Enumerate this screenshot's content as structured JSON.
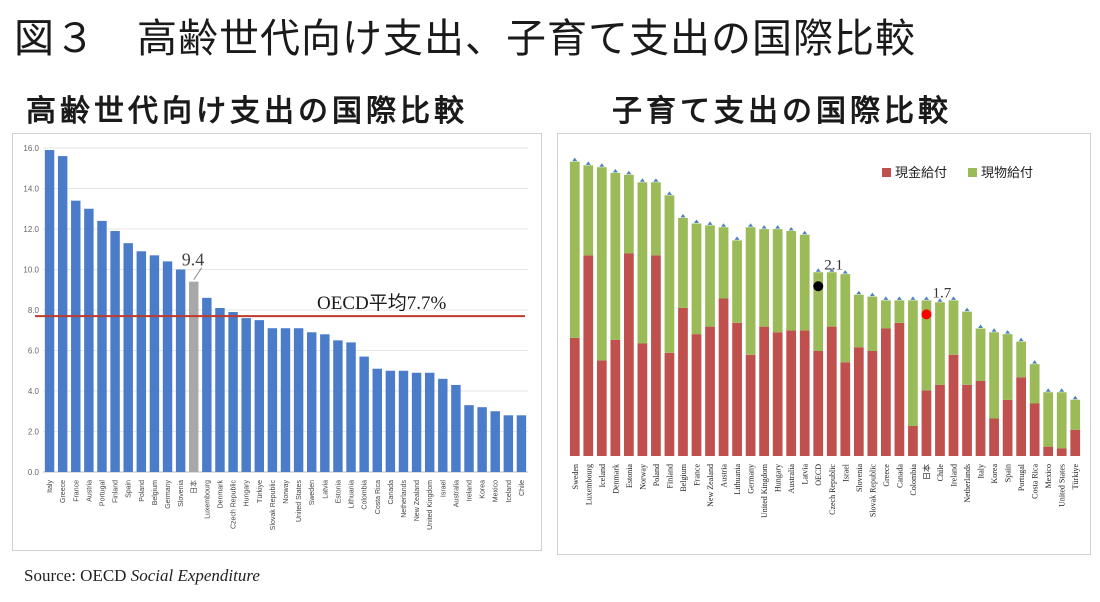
{
  "title": "図３　高齢世代向け支出、子育て支出の国際比較",
  "source": {
    "prefix": "Source: OECD ",
    "italic": "Social Expenditure"
  },
  "chart_data": [
    {
      "type": "bar",
      "title": "高齢世代向け支出の国際比較",
      "categories": [
        "Italy",
        "Greece",
        "France",
        "Austria",
        "Portugal",
        "Finland",
        "Spain",
        "Poland",
        "Belgium",
        "Germany",
        "Slovenia",
        "日本",
        "Luxembourg",
        "Denmark",
        "Czech Republic",
        "Hungary",
        "Türkiye",
        "Slovak Republic",
        "Norway",
        "United States",
        "Sweden",
        "Latvia",
        "Estonia",
        "Lithuania",
        "Colombia",
        "Costa Rica",
        "Canada",
        "Netherlands",
        "New Zealand",
        "United Kingdom",
        "Israel",
        "Australia",
        "Ireland",
        "Korea",
        "Mexico",
        "Iceland",
        "Chile"
      ],
      "values": [
        15.9,
        15.6,
        13.4,
        13.0,
        12.4,
        11.9,
        11.3,
        10.9,
        10.7,
        10.4,
        10.0,
        9.4,
        8.6,
        8.1,
        7.9,
        7.6,
        7.5,
        7.1,
        7.1,
        7.1,
        6.9,
        6.8,
        6.5,
        6.4,
        5.7,
        5.1,
        5.0,
        5.0,
        4.9,
        4.9,
        4.6,
        4.3,
        3.3,
        3.2,
        3.0,
        2.8,
        2.8
      ],
      "highlight": "日本",
      "highlight_label": "9.4",
      "reference_line": {
        "value": 7.7,
        "label": "OECD平均7.7%",
        "color": "#c0392b"
      },
      "yticks": [
        "0.0",
        "2.0",
        "4.0",
        "6.0",
        "8.0",
        "10.0",
        "12.0",
        "14.0",
        "16.0"
      ],
      "ylim": [
        0,
        16
      ],
      "bar_color": "#4a7cc9",
      "highlight_color": "#a8a8a8",
      "grid": true
    },
    {
      "type": "bar",
      "stacked": true,
      "title": "子育て支出の国際比較",
      "categories": [
        "Sweden",
        "Luxembourg",
        "Iceland",
        "Denmark",
        "Estonia",
        "Norway",
        "Poland",
        "Finland",
        "Belgium",
        "France",
        "New Zealand",
        "Austria",
        "Lithuania",
        "Germany",
        "United Kingdom",
        "Hungary",
        "Australia",
        "Latvia",
        "OECD",
        "Czech Republic",
        "Israel",
        "Slovenia",
        "Slovak Republic",
        "Greece",
        "Canada",
        "Colombia",
        "日本",
        "Chile",
        "Ireland",
        "Netherlands",
        "Italy",
        "Korea",
        "Spain",
        "Portugal",
        "Costa Rica",
        "Mexico",
        "United States",
        "Türkiye"
      ],
      "series": [
        {
          "name": "現金給付",
          "color": "#c0504d",
          "values": [
            6.3,
            10.7,
            5.1,
            6.2,
            10.8,
            6.0,
            10.7,
            5.5,
            7.9,
            6.5,
            6.9,
            8.4,
            7.1,
            5.4,
            6.9,
            6.6,
            6.7,
            6.7,
            5.6,
            6.9,
            5.0,
            5.8,
            5.6,
            6.8,
            7.1,
            1.6,
            3.5,
            3.8,
            5.4,
            3.8,
            4.0,
            2.0,
            3.0,
            4.2,
            2.8,
            0.5,
            0.4,
            1.4
          ]
        },
        {
          "name": "現物給付",
          "color": "#9bbb59",
          "values": [
            9.4,
            4.8,
            10.3,
            8.9,
            4.2,
            8.6,
            3.9,
            8.4,
            4.8,
            5.9,
            5.4,
            3.8,
            4.4,
            6.8,
            5.2,
            5.5,
            5.3,
            5.1,
            4.2,
            2.9,
            4.7,
            2.8,
            2.9,
            1.5,
            1.2,
            6.7,
            4.8,
            4.4,
            2.9,
            3.9,
            2.8,
            4.6,
            3.5,
            1.9,
            2.1,
            2.9,
            3.0,
            1.6
          ]
        }
      ],
      "annotations": [
        {
          "category": "OECD",
          "label": "2.1",
          "marker_color": "#000000"
        },
        {
          "category": "日本",
          "label": "1.7",
          "marker_color": "#ff0000"
        }
      ],
      "legend": "top-right",
      "ylim": [
        0,
        16
      ]
    }
  ]
}
